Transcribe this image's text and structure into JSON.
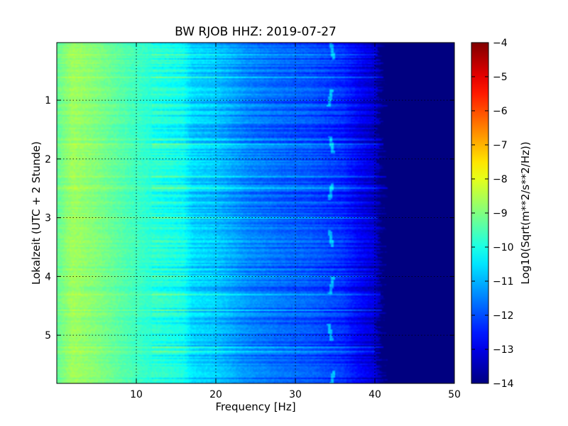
{
  "chart_data": {
    "type": "heatmap",
    "title": "BW RJOB HHZ: 2019-07-27",
    "xlabel": "Frequency [Hz]",
    "ylabel": "Lokalzeit (UTC + 2 Stunde)",
    "xlim": [
      0,
      50
    ],
    "ylim": [
      5.82,
      0.02
    ],
    "x_ticks": [
      10,
      20,
      30,
      40,
      50
    ],
    "y_ticks": [
      1,
      2,
      3,
      4,
      5
    ],
    "grid": true,
    "colormap": "jet",
    "colorbar": {
      "label": "Log10(Sqrt(m**2/s**2/Hz))",
      "range": [
        -14,
        -4
      ],
      "ticks": [
        -4,
        -5,
        -6,
        -7,
        -8,
        -9,
        -10,
        -11,
        -12,
        -13,
        -14
      ]
    },
    "z_profile": {
      "frequency": [
        0,
        2,
        5,
        8,
        12,
        16,
        17,
        20,
        24,
        28,
        32,
        36,
        38,
        40,
        41,
        42,
        50
      ],
      "value": [
        -9.3,
        -8.7,
        -9.0,
        -9.4,
        -9.9,
        -10.2,
        -10.7,
        -10.9,
        -11.5,
        -11.8,
        -12.0,
        -12.4,
        -12.9,
        -13.3,
        -13.9,
        -14,
        -14
      ]
    },
    "line_feature": {
      "frequency": 34.5,
      "label": ""
    }
  }
}
